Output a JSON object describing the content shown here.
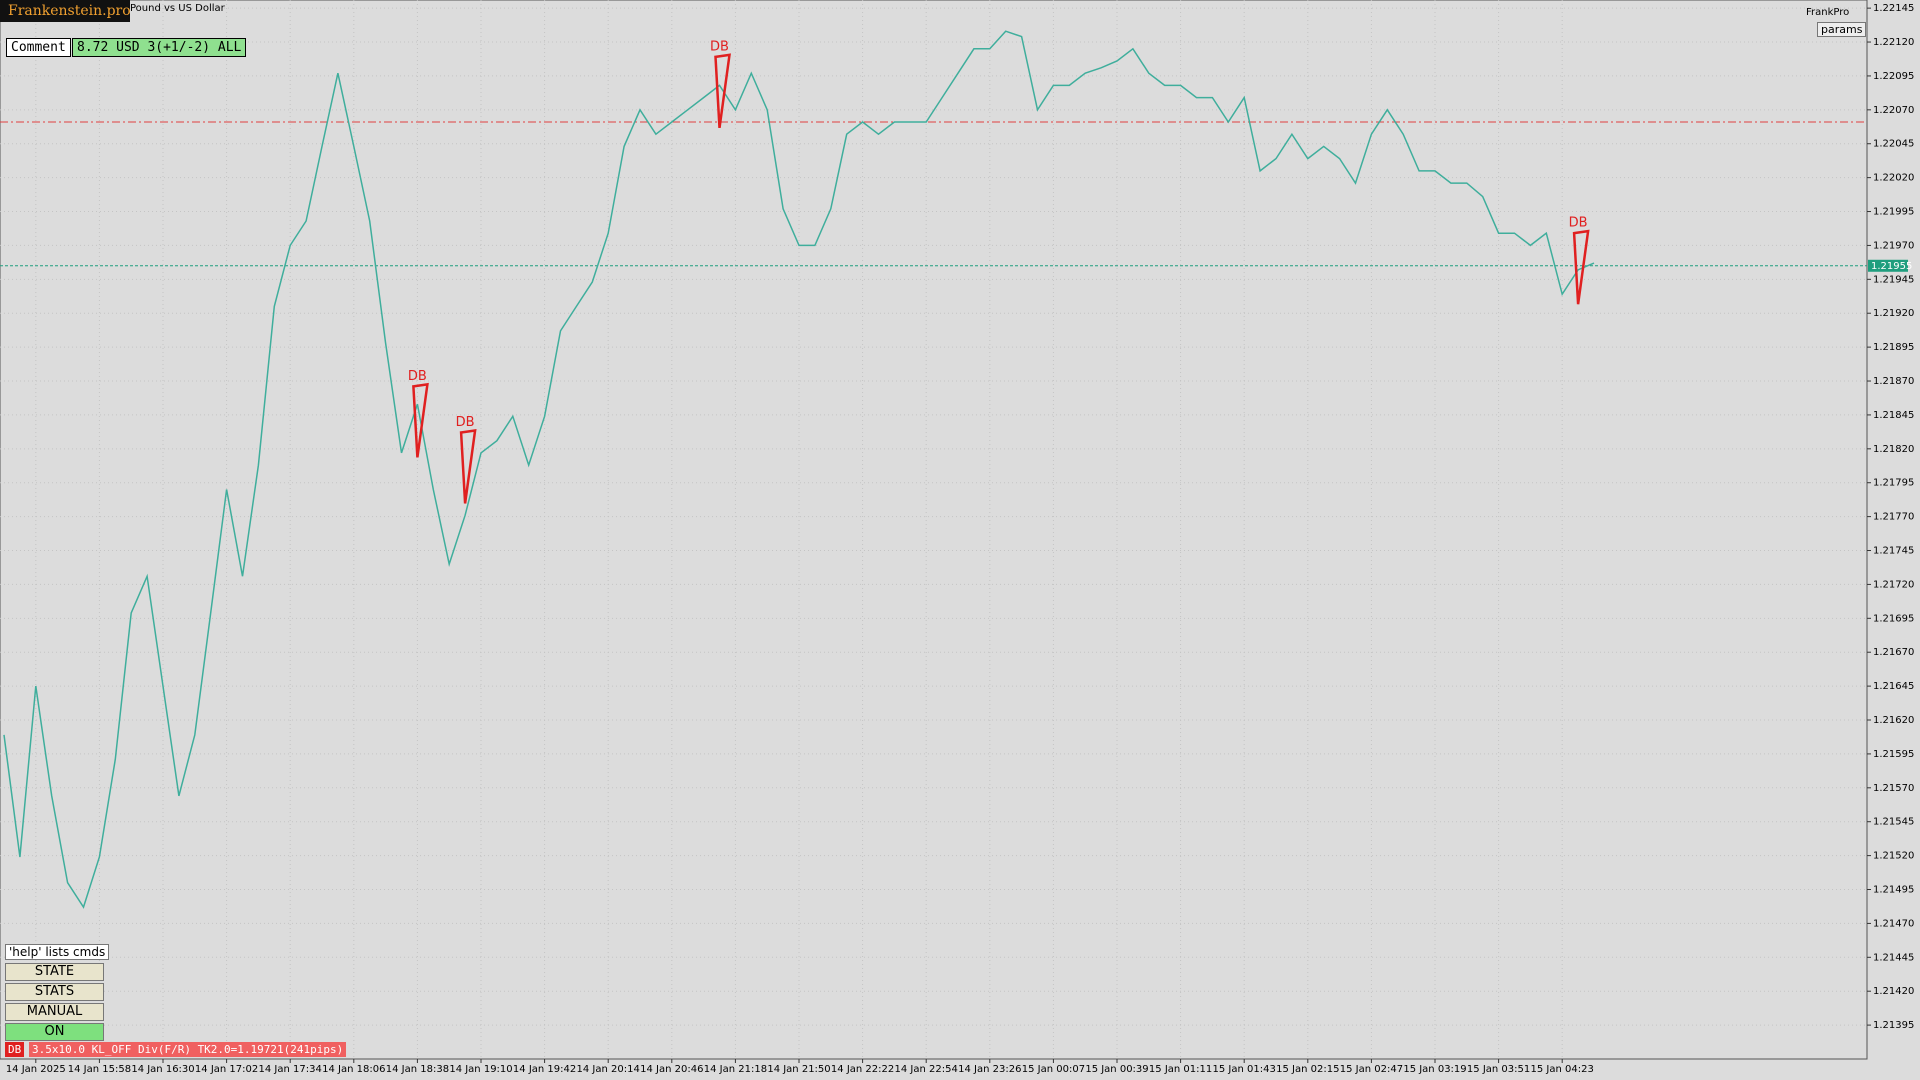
{
  "header": {
    "brand": "Frankenstein.pro",
    "symbol": "Pound vs US Dollar",
    "account": "FrankPro",
    "params_button": "params"
  },
  "panel": {
    "comment_label": "Comment",
    "comment_value": "8.72 USD 3(+1/-2) ALL"
  },
  "controls": {
    "help": "'help' lists cmds",
    "buttons": [
      "STATE",
      "STATS",
      "MANUAL",
      "ON"
    ]
  },
  "status": {
    "tag": "DB",
    "text": "3.5x10.0 KL_OFF Div(F/R) TK2.0=1.19721(241pips)"
  },
  "chart_data": {
    "type": "line",
    "color": "#3fae9c",
    "grid": true,
    "categories": [
      null,
      null,
      "14 Jan 2025",
      null,
      null,
      null,
      "14 Jan 15:58",
      null,
      null,
      null,
      "14 Jan 16:30",
      null,
      null,
      null,
      "14 Jan 17:02",
      null,
      null,
      null,
      "14 Jan 17:34",
      null,
      null,
      null,
      "14 Jan 18:06",
      null,
      null,
      null,
      "14 Jan 18:38",
      null,
      null,
      null,
      "14 Jan 19:10",
      null,
      null,
      null,
      "14 Jan 19:42",
      null,
      null,
      null,
      "14 Jan 20:14",
      null,
      null,
      null,
      "14 Jan 20:46",
      null,
      null,
      null,
      "14 Jan 21:18",
      null,
      null,
      null,
      "14 Jan 21:50",
      null,
      null,
      null,
      "14 Jan 22:22",
      null,
      null,
      null,
      "14 Jan 22:54",
      null,
      null,
      null,
      "14 Jan 23:26",
      null,
      null,
      null,
      "15 Jan 00:07",
      null,
      null,
      null,
      "15 Jan 00:39",
      null,
      null,
      null,
      "15 Jan 01:11",
      null,
      null,
      null,
      "15 Jan 01:43",
      null,
      null,
      null,
      "15 Jan 02:15",
      null,
      null,
      null,
      "15 Jan 02:47",
      null,
      null,
      null,
      "15 Jan 03:19",
      null,
      null,
      null,
      "15 Jan 03:51",
      null,
      null,
      null,
      "15 Jan 04:23",
      null,
      null
    ],
    "values": [
      1.21609,
      1.21519,
      1.21645,
      1.21564,
      1.215,
      1.21482,
      1.21519,
      1.21591,
      1.21699,
      1.21726,
      1.21645,
      1.21564,
      1.21609,
      1.21699,
      1.2179,
      1.21726,
      1.21808,
      1.21925,
      1.2197,
      1.21988,
      1.22043,
      1.22097,
      1.22043,
      1.21988,
      1.21898,
      1.21817,
      1.21853,
      1.2179,
      1.21735,
      1.21771,
      1.21817,
      1.21826,
      1.21844,
      1.21808,
      1.21844,
      1.21907,
      1.21925,
      1.21943,
      1.21979,
      1.22043,
      1.2207,
      1.22052,
      1.22061,
      1.2207,
      1.22079,
      1.22088,
      1.2207,
      1.22097,
      1.2207,
      1.21997,
      1.2197,
      1.2197,
      1.21997,
      1.22052,
      1.22061,
      1.22052,
      1.22061,
      1.22061,
      1.22061,
      1.22079,
      1.22097,
      1.22115,
      1.22115,
      1.22128,
      1.22124,
      1.2207,
      1.22088,
      1.22088,
      1.22097,
      1.22101,
      1.22106,
      1.22115,
      1.22097,
      1.22088,
      1.22088,
      1.22079,
      1.22079,
      1.22061,
      1.22079,
      1.22025,
      1.22034,
      1.22052,
      1.22034,
      1.22043,
      1.22034,
      1.22016,
      1.22052,
      1.2207,
      1.22052,
      1.22025,
      1.22025,
      1.22016,
      1.22016,
      1.22006,
      1.21979,
      1.21979,
      1.2197,
      1.21979,
      1.21934,
      1.21952,
      1.21957
    ],
    "ylim": [
      1.2137,
      1.22151
    ],
    "yticks": [
      1.21395,
      {
        "value": 1.2142,
        "label": "1.21420"
      },
      1.21445,
      {
        "value": 1.2147,
        "label": "1.21470"
      },
      1.21495,
      {
        "value": 1.2152,
        "label": "1.21520"
      },
      1.21545,
      {
        "value": 1.2157,
        "label": "1.21570"
      },
      1.21595,
      {
        "value": 1.2162,
        "label": "1.21620"
      },
      1.21645,
      {
        "value": 1.2167,
        "label": "1.21670"
      },
      1.21695,
      {
        "value": 1.2172,
        "label": "1.21720"
      },
      1.21745,
      {
        "value": 1.2177,
        "label": "1.21770"
      },
      1.21795,
      {
        "value": 1.2182,
        "label": "1.21820"
      },
      1.21845,
      {
        "value": 1.2187,
        "label": "1.21870"
      },
      1.21895,
      {
        "value": 1.2192,
        "label": "1.21920"
      },
      1.21945,
      {
        "value": 1.2197,
        "label": "1.21970"
      },
      1.21995,
      {
        "value": 1.2202,
        "label": "1.22020"
      },
      1.22045,
      {
        "value": 1.2207,
        "label": "1.22070"
      },
      1.22095,
      {
        "value": 1.2212,
        "label": "1.22120"
      },
      1.22145
    ],
    "current_price": 1.21955,
    "current_price_color": "#1f9e7e",
    "level": 1.22061,
    "level_color": "#e04040",
    "annotations": [
      {
        "text": "DB",
        "point": 26,
        "value": 1.21869
      },
      {
        "text": "DB",
        "point": 29,
        "value": 1.21835
      },
      {
        "text": "DB",
        "point": 45,
        "value": 1.22112
      },
      {
        "text": "DB",
        "point": 99,
        "value": 1.21982
      }
    ]
  }
}
